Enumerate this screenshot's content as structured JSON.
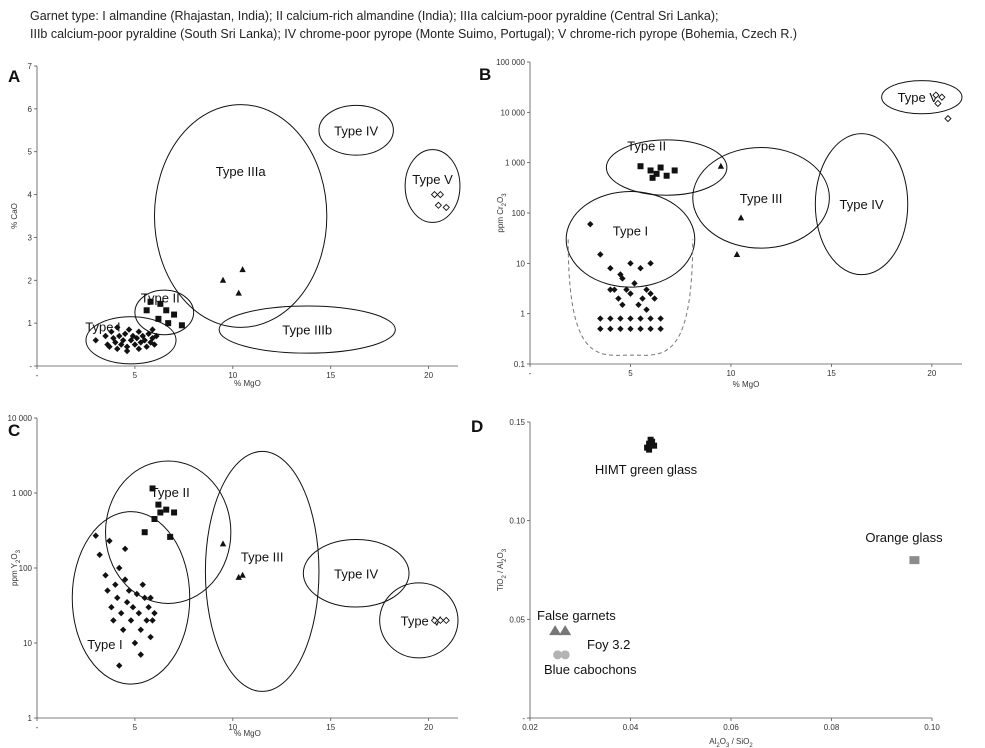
{
  "caption": {
    "line1": "Garnet type: I almandine (Rhajastan, India); II calcium-rich almandine (India); IIIa calcium-poor pyraldine (Central Sri Lanka);",
    "line2": "IIIb calcium-poor pyraldine (South Sri Lanka); IV chrome-poor pyrope (Monte Suimo, Portugal); V chrome-rich pyrope (Bohemia, Czech R.)"
  },
  "colors": {
    "ink": "#111111",
    "axis": "#555555",
    "false_garnets": "#777777",
    "blue_cabochons": "#b3b3b3",
    "orange_glass": "#8c8c8c",
    "dashed": "#777777"
  },
  "chart_data": [
    {
      "panel": "A",
      "type": "scatter",
      "xlabel": "% MgO",
      "ylabel": "% CaO",
      "xlim": [
        0,
        21.5
      ],
      "ylim": [
        0,
        7
      ],
      "x_ticks": [
        "-",
        "5",
        "10",
        "15",
        "20"
      ],
      "y_ticks": [
        "-",
        "1",
        "2",
        "3",
        "4",
        "5",
        "6",
        "7"
      ],
      "series": [
        {
          "marker": "diamond",
          "points": [
            [
              3.0,
              0.6
            ],
            [
              3.5,
              0.7
            ],
            [
              3.6,
              0.5
            ],
            [
              3.8,
              0.8
            ],
            [
              3.9,
              0.65
            ],
            [
              4.0,
              0.55
            ],
            [
              4.1,
              0.9
            ],
            [
              4.2,
              0.7
            ],
            [
              4.3,
              0.5
            ],
            [
              4.4,
              0.6
            ],
            [
              4.5,
              0.75
            ],
            [
              4.6,
              0.45
            ],
            [
              4.7,
              0.85
            ],
            [
              4.8,
              0.6
            ],
            [
              4.9,
              0.7
            ],
            [
              5.0,
              0.5
            ],
            [
              5.1,
              0.65
            ],
            [
              5.2,
              0.8
            ],
            [
              5.3,
              0.55
            ],
            [
              5.4,
              0.7
            ],
            [
              5.5,
              0.6
            ],
            [
              5.6,
              0.45
            ],
            [
              5.7,
              0.75
            ],
            [
              5.8,
              0.55
            ],
            [
              5.9,
              0.65
            ],
            [
              6.0,
              0.5
            ],
            [
              6.1,
              0.7
            ],
            [
              4.1,
              0.4
            ],
            [
              4.6,
              0.35
            ],
            [
              5.2,
              0.4
            ],
            [
              3.7,
              0.45
            ],
            [
              5.9,
              0.85
            ]
          ]
        },
        {
          "marker": "square",
          "points": [
            [
              5.6,
              1.3
            ],
            [
              5.8,
              1.5
            ],
            [
              6.3,
              1.45
            ],
            [
              6.6,
              1.3
            ],
            [
              7.0,
              1.2
            ],
            [
              6.7,
              1.0
            ],
            [
              7.4,
              0.95
            ],
            [
              6.2,
              1.1
            ]
          ]
        },
        {
          "marker": "triangle",
          "points": [
            [
              9.5,
              2.0
            ],
            [
              10.5,
              2.25
            ],
            [
              10.3,
              1.7
            ]
          ]
        },
        {
          "marker": "diamond-open",
          "points": [
            [
              20.3,
              4.0
            ],
            [
              20.6,
              4.0
            ],
            [
              20.5,
              3.75
            ],
            [
              20.9,
              3.7
            ]
          ]
        }
      ],
      "regions": [
        {
          "label": "Type I",
          "cx": 4.8,
          "cy": 0.6,
          "rx": 2.3,
          "ry": 0.55
        },
        {
          "label": "Type II",
          "cx": 6.5,
          "cy": 1.25,
          "rx": 1.5,
          "ry": 0.52
        },
        {
          "label": "Type IIIa",
          "cx": 10.4,
          "cy": 3.5,
          "rx": 4.4,
          "ry": 2.6
        },
        {
          "label": "Type IIIb",
          "cx": 13.8,
          "cy": 0.85,
          "rx": 4.5,
          "ry": 0.55
        },
        {
          "label": "Type IV",
          "cx": 16.3,
          "cy": 5.5,
          "rx": 1.9,
          "ry": 0.58
        },
        {
          "label": "Type V",
          "cx": 20.2,
          "cy": 4.2,
          "rx": 1.4,
          "ry": 0.85
        }
      ]
    },
    {
      "panel": "B",
      "type": "scatter",
      "yscale": "log",
      "xlabel": "% MgO",
      "ylabel": "ppm Cr2O3",
      "xlim": [
        0,
        21.5
      ],
      "ylim": [
        0.1,
        100000
      ],
      "x_ticks": [
        "-",
        "5",
        "10",
        "15",
        "20"
      ],
      "y_ticks": [
        "0.1",
        "1",
        "10",
        "100",
        "1 000",
        "10 000",
        "100 000"
      ],
      "series": [
        {
          "marker": "diamond",
          "points": [
            [
              3.0,
              60
            ],
            [
              3.5,
              15
            ],
            [
              4.0,
              8
            ],
            [
              4.2,
              3
            ],
            [
              4.4,
              2
            ],
            [
              4.6,
              1.5
            ],
            [
              4.8,
              3
            ],
            [
              5.0,
              2.5
            ],
            [
              5.2,
              4
            ],
            [
              5.4,
              1.5
            ],
            [
              5.6,
              2
            ],
            [
              5.8,
              3
            ],
            [
              6.0,
              2.5
            ],
            [
              6.2,
              2
            ],
            [
              4.5,
              6
            ],
            [
              5.0,
              10
            ],
            [
              5.5,
              8
            ],
            [
              6.0,
              10
            ],
            [
              4.0,
              3
            ],
            [
              3.5,
              0.8
            ],
            [
              4.0,
              0.8
            ],
            [
              4.5,
              0.8
            ],
            [
              5.0,
              0.8
            ],
            [
              5.5,
              0.8
            ],
            [
              6.0,
              0.8
            ],
            [
              6.5,
              0.8
            ],
            [
              3.5,
              0.5
            ],
            [
              4.0,
              0.5
            ],
            [
              4.5,
              0.5
            ],
            [
              5.0,
              0.5
            ],
            [
              5.5,
              0.5
            ],
            [
              6.0,
              0.5
            ],
            [
              6.5,
              0.5
            ],
            [
              5.8,
              1.2
            ],
            [
              4.6,
              5
            ]
          ]
        },
        {
          "marker": "square",
          "points": [
            [
              5.5,
              850
            ],
            [
              6.0,
              700
            ],
            [
              6.3,
              600
            ],
            [
              6.5,
              800
            ],
            [
              6.8,
              550
            ],
            [
              7.2,
              700
            ],
            [
              6.1,
              500
            ]
          ]
        },
        {
          "marker": "triangle",
          "points": [
            [
              9.5,
              850
            ],
            [
              10.5,
              80
            ],
            [
              10.3,
              15
            ]
          ]
        },
        {
          "marker": "diamond-open",
          "points": [
            [
              20.2,
              22000
            ],
            [
              20.5,
              20000
            ],
            [
              20.3,
              15000
            ],
            [
              20.8,
              7500
            ]
          ]
        }
      ],
      "regions": [
        {
          "label": "Type I",
          "cx": 5.0,
          "cy": 30,
          "rx": 3.2,
          "ry": 0.95
        },
        {
          "label": "Type II",
          "cx": 6.8,
          "cy": 800,
          "rx": 3.0,
          "ry": 0.55
        },
        {
          "label": "Type III",
          "cx": 11.5,
          "cy": 200,
          "rx": 3.4,
          "ry": 1.0
        },
        {
          "label": "Type IV",
          "cx": 16.5,
          "cy": 150,
          "rx": 2.3,
          "ry": 1.4
        },
        {
          "label": "Type V",
          "cx": 19.5,
          "cy": 20000,
          "rx": 2.0,
          "ry": 0.33
        }
      ]
    },
    {
      "panel": "C",
      "type": "scatter",
      "yscale": "log",
      "xlabel": "% MgO",
      "ylabel": "ppm Y2O3",
      "xlim": [
        0,
        21.5
      ],
      "ylim": [
        1,
        10000
      ],
      "x_ticks": [
        "-",
        "5",
        "10",
        "15",
        "20"
      ],
      "y_ticks": [
        "1",
        "10",
        "100",
        "1 000",
        "10 000"
      ],
      "series": [
        {
          "marker": "diamond",
          "points": [
            [
              3.0,
              270
            ],
            [
              3.2,
              150
            ],
            [
              3.5,
              80
            ],
            [
              3.6,
              50
            ],
            [
              3.8,
              30
            ],
            [
              3.9,
              20
            ],
            [
              4.0,
              60
            ],
            [
              4.1,
              40
            ],
            [
              4.2,
              100
            ],
            [
              4.3,
              25
            ],
            [
              4.4,
              15
            ],
            [
              4.5,
              70
            ],
            [
              4.6,
              35
            ],
            [
              4.7,
              50
            ],
            [
              4.8,
              20
            ],
            [
              4.9,
              30
            ],
            [
              5.0,
              10
            ],
            [
              5.1,
              45
            ],
            [
              5.2,
              25
            ],
            [
              5.3,
              15
            ],
            [
              5.4,
              60
            ],
            [
              5.5,
              40
            ],
            [
              5.6,
              20
            ],
            [
              5.7,
              30
            ],
            [
              5.8,
              12
            ],
            [
              5.9,
              20
            ],
            [
              6.0,
              25
            ],
            [
              4.2,
              5
            ],
            [
              5.3,
              7
            ],
            [
              3.7,
              230
            ],
            [
              5.8,
              40
            ],
            [
              4.5,
              180
            ]
          ]
        },
        {
          "marker": "square",
          "points": [
            [
              5.5,
              300
            ],
            [
              6.0,
              450
            ],
            [
              6.3,
              550
            ],
            [
              6.6,
              600
            ],
            [
              7.0,
              550
            ],
            [
              6.2,
              700
            ],
            [
              6.8,
              260
            ],
            [
              5.9,
              1150
            ]
          ]
        },
        {
          "marker": "triangle",
          "points": [
            [
              9.5,
              210
            ],
            [
              10.5,
              80
            ],
            [
              10.3,
              75
            ]
          ]
        },
        {
          "marker": "diamond-open",
          "points": [
            [
              20.3,
              20
            ],
            [
              20.6,
              20
            ],
            [
              20.9,
              20
            ]
          ]
        }
      ],
      "regions": [
        {
          "label": "Type I",
          "cx": 4.8,
          "cy": 40,
          "rx": 3.0,
          "ry": 1.15
        },
        {
          "label": "Type II",
          "cx": 6.7,
          "cy": 300,
          "rx": 3.2,
          "ry": 0.95
        },
        {
          "label": "Type III",
          "cx": 11.5,
          "cy": 90,
          "rx": 2.9,
          "ry": 1.6
        },
        {
          "label": "Type IV",
          "cx": 16.3,
          "cy": 85,
          "rx": 2.7,
          "ry": 0.45
        },
        {
          "label": "Type V",
          "cx": 19.5,
          "cy": 20,
          "rx": 2.0,
          "ry": 0.5
        }
      ]
    },
    {
      "panel": "D",
      "type": "scatter",
      "xlabel": "Al2O3 / SiO2",
      "ylabel": "TiO2 / Al2O3",
      "xlim": [
        0.02,
        0.1
      ],
      "ylim": [
        0,
        0.15
      ],
      "x_ticks": [
        "0.02",
        "0.04",
        "0.06",
        "0.08",
        "0.10"
      ],
      "y_ticks": [
        "-",
        "0.05",
        "0.10",
        "0.15"
      ],
      "series": [
        {
          "name": "HIMT green glass",
          "marker": "square",
          "points": [
            [
              0.0433,
              0.137
            ],
            [
              0.0437,
              0.139
            ],
            [
              0.044,
              0.141
            ],
            [
              0.0437,
              0.136
            ],
            [
              0.0443,
              0.14
            ],
            [
              0.0447,
              0.138
            ]
          ]
        },
        {
          "name": "Orange glass",
          "marker": "square-gray",
          "points": [
            [
              0.0965,
              0.08
            ]
          ]
        },
        {
          "name": "False garnets",
          "marker": "triangle-gray",
          "points": [
            [
              0.025,
              0.044
            ],
            [
              0.027,
              0.044
            ]
          ]
        },
        {
          "name": "Blue cabochons",
          "marker": "circle-gray",
          "points": [
            [
              0.0255,
              0.032
            ],
            [
              0.027,
              0.032
            ]
          ]
        }
      ],
      "annotations": [
        "HIMT green glass",
        "Orange glass",
        "False garnets",
        "Foy 3.2",
        "Blue cabochons"
      ]
    }
  ]
}
